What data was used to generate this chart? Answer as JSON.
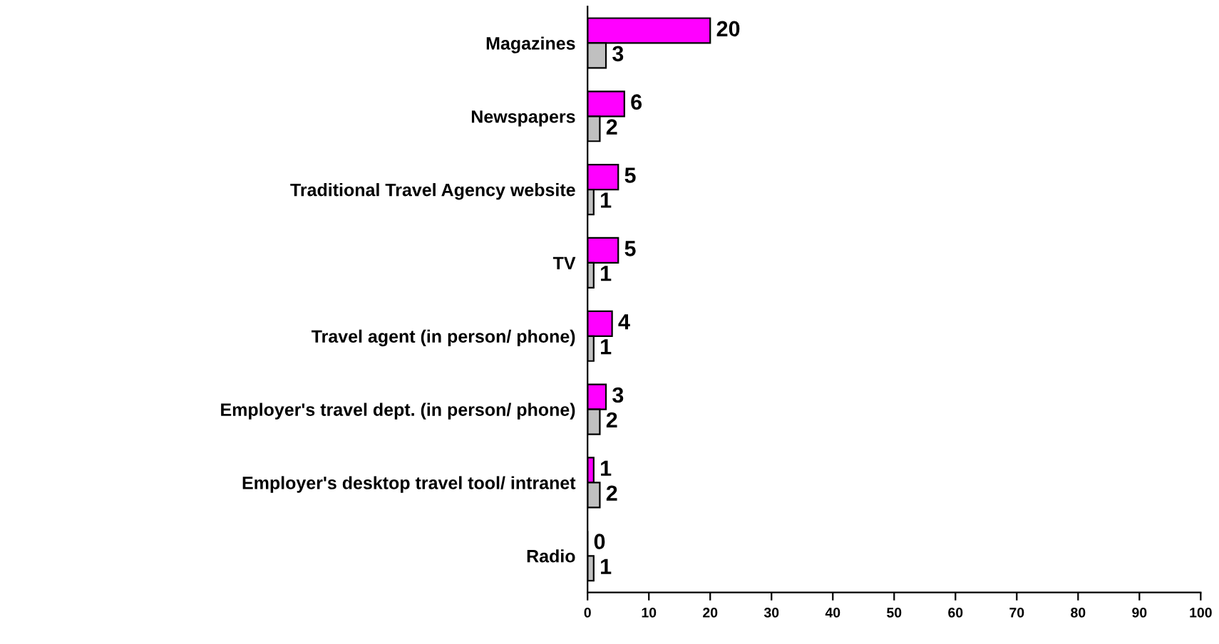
{
  "chart_data": {
    "type": "bar",
    "orientation": "horizontal",
    "categories": [
      "Magazines",
      "Newspapers",
      "Traditional Travel Agency website",
      "TV",
      "Travel agent (in person/ phone)",
      "Employer's travel dept. (in person/ phone)",
      "Employer's desktop travel tool/ intranet",
      "Radio"
    ],
    "series": [
      {
        "color": "#ff00ff",
        "values": [
          20,
          6,
          5,
          5,
          4,
          3,
          1,
          0
        ]
      },
      {
        "color": "#c0c0c0",
        "values": [
          3,
          2,
          1,
          1,
          1,
          2,
          2,
          1
        ]
      }
    ],
    "xlim": [
      0,
      100
    ],
    "xticks": [
      0,
      10,
      20,
      30,
      40,
      50,
      60,
      70,
      80,
      90,
      100
    ],
    "data_labels": true,
    "grid": false,
    "legend": false
  }
}
